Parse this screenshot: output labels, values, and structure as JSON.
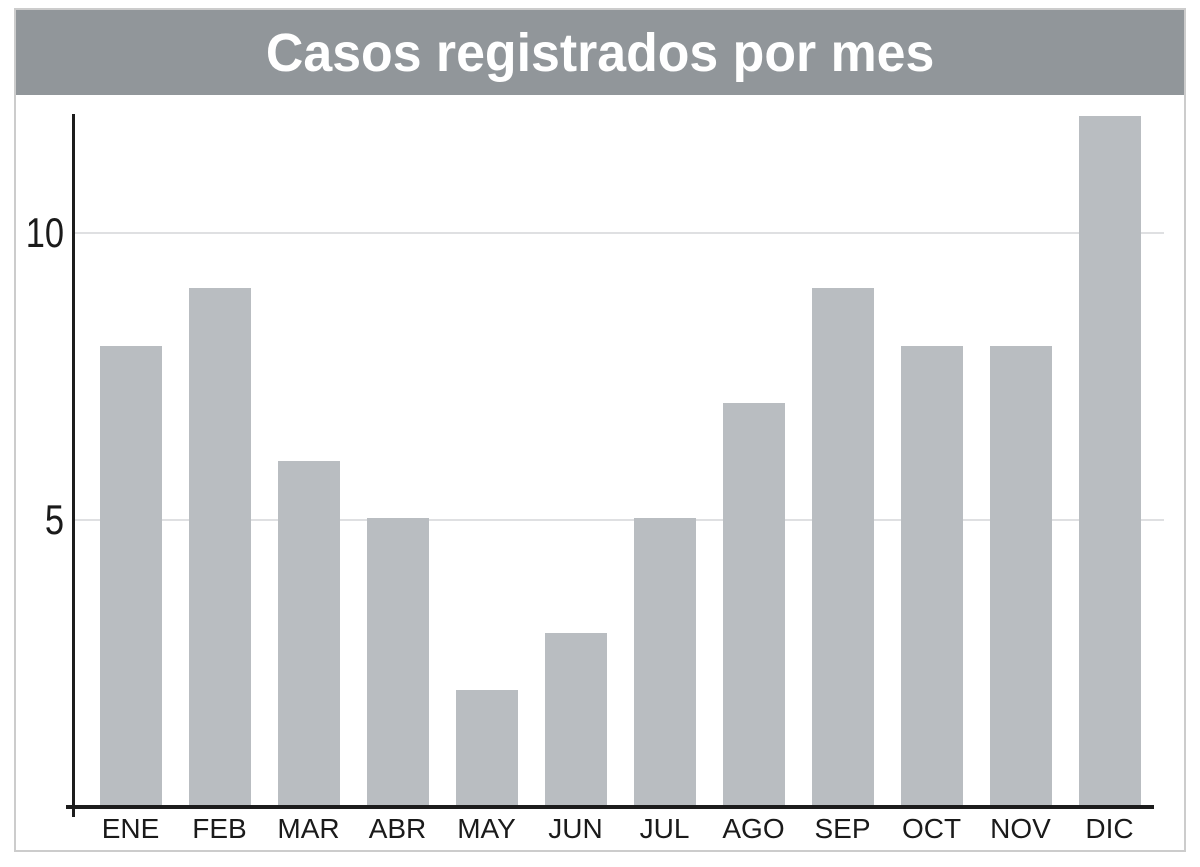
{
  "chart_data": {
    "type": "bar",
    "title": "Casos registrados por mes",
    "categories": [
      "ENE",
      "FEB",
      "MAR",
      "ABR",
      "MAY",
      "JUN",
      "JUL",
      "AGO",
      "SEP",
      "OCT",
      "NOV",
      "DIC"
    ],
    "values": [
      8,
      9,
      6,
      5,
      2,
      3,
      5,
      7,
      9,
      8,
      8,
      12
    ],
    "xlabel": "",
    "ylabel": "",
    "yticks": [
      5,
      10
    ],
    "ylim": [
      0,
      12.1
    ],
    "grid": true,
    "legend": false,
    "colors": {
      "bar": "#b9bdc1",
      "title_background": "#91969a",
      "title_text": "#ffffff",
      "gridline": "#dfe0e2",
      "axis": "#1c1c1c",
      "tick_text": "#1a1a1a",
      "frame_border": "#cccccc"
    }
  }
}
